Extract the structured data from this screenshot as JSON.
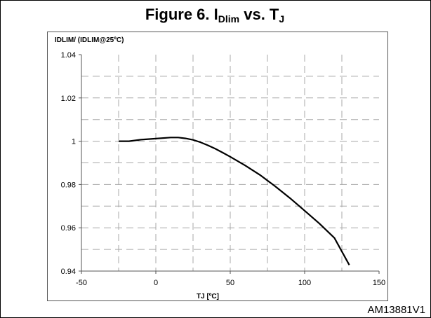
{
  "figure": {
    "title_main": "Figure 6. I",
    "title_sub1": "Dlim",
    "title_mid": " vs. T",
    "title_sub2": "J",
    "watermark": "AM13881V1"
  },
  "chart_data": {
    "type": "line",
    "title": "Figure 6. IDlim vs. TJ",
    "ylabel": "IDLIM/ (IDLIM@25ºC)",
    "xlabel": "TJ [ºC]",
    "xlim": [
      -50,
      150
    ],
    "ylim": [
      0.94,
      1.04
    ],
    "xticks": [
      -50,
      0,
      50,
      100,
      150
    ],
    "yticks": [
      0.94,
      0.96,
      0.98,
      1,
      1.02,
      1.04
    ],
    "grid": "dashed",
    "series": [
      {
        "x": [
          -25,
          -18,
          -10,
          0,
          10,
          15,
          20,
          25,
          30,
          35,
          40,
          45,
          50,
          60,
          70,
          80,
          90,
          100,
          110,
          120,
          130
        ],
        "y": [
          1.0,
          1.0,
          1.0007,
          1.0012,
          1.0017,
          1.0017,
          1.0013,
          1.0006,
          0.9995,
          0.9981,
          0.9965,
          0.9947,
          0.9928,
          0.9888,
          0.9844,
          0.9793,
          0.9738,
          0.9679,
          0.9619,
          0.9553,
          0.9428
        ]
      }
    ]
  }
}
